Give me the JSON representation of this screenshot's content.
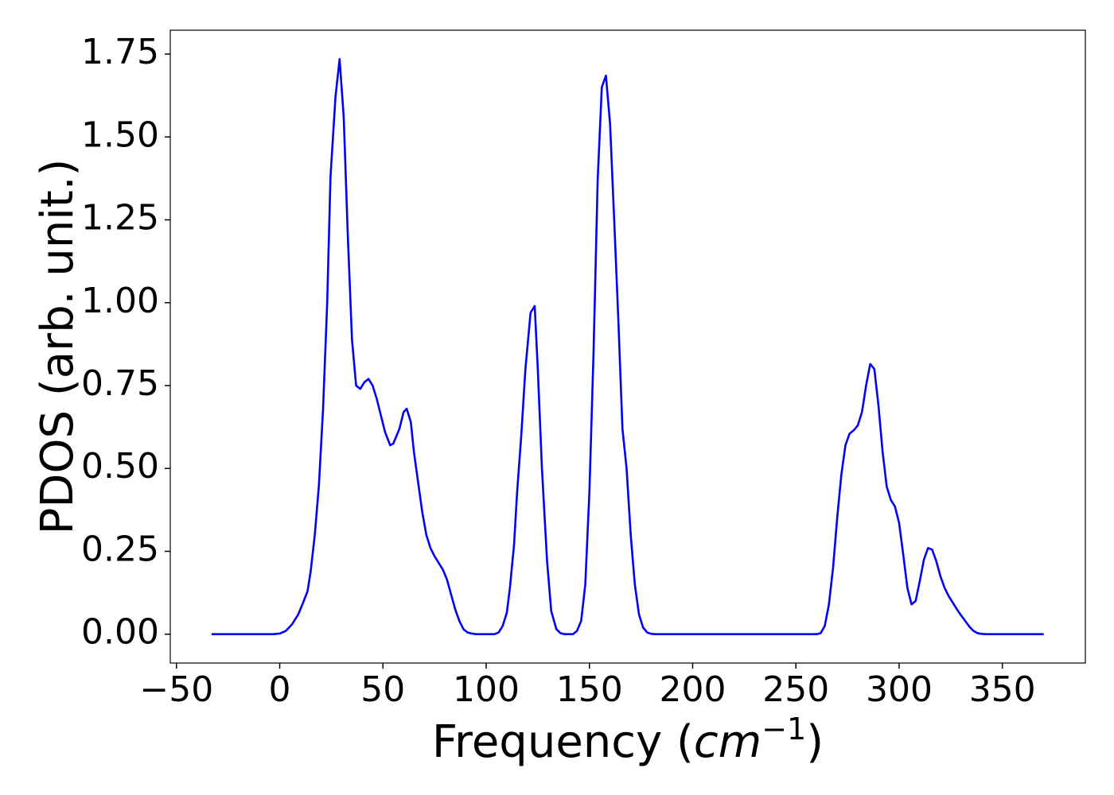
{
  "chart_data": {
    "type": "line",
    "xlabel": [
      "Frequency (",
      "cm",
      "−1",
      ")"
    ],
    "ylabel": "PDOS (arb. unit.)",
    "x": [
      -33,
      -3,
      0,
      3,
      6,
      9,
      11,
      13.5,
      15,
      17,
      19,
      21,
      23,
      24.6,
      27,
      29,
      31,
      33,
      35,
      37,
      39,
      41,
      43,
      45,
      47,
      49,
      51,
      53.5,
      55,
      58,
      60,
      61.5,
      63.5,
      65,
      67,
      69,
      71,
      73,
      75,
      77,
      79,
      81,
      83,
      85,
      87,
      89,
      91,
      93,
      95,
      104,
      106,
      108,
      110,
      111.5,
      113.5,
      115,
      117,
      119,
      121.5,
      123.5,
      125,
      127,
      129.5,
      131.5,
      134,
      136,
      138,
      142,
      144,
      146,
      148,
      150,
      152,
      154,
      156,
      158,
      160,
      162,
      164,
      166,
      168,
      170,
      172,
      174,
      176,
      178,
      180,
      182,
      260,
      262,
      264,
      266,
      268,
      270,
      272,
      274,
      276,
      278,
      280,
      282,
      284,
      286,
      288,
      290,
      292,
      294,
      296,
      298,
      300,
      302,
      304,
      306,
      308,
      310,
      312,
      314,
      316,
      318,
      320,
      322,
      324,
      326,
      328,
      330,
      332,
      334,
      336,
      338,
      340,
      342,
      370
    ],
    "series": [
      {
        "color": "#0000ff",
        "values": [
          0,
          0,
          0.002,
          0.01,
          0.03,
          0.06,
          0.09,
          0.13,
          0.19,
          0.3,
          0.45,
          0.68,
          1.0,
          1.38,
          1.62,
          1.735,
          1.56,
          1.2,
          0.89,
          0.75,
          0.74,
          0.76,
          0.77,
          0.75,
          0.71,
          0.66,
          0.61,
          0.57,
          0.575,
          0.62,
          0.67,
          0.68,
          0.64,
          0.55,
          0.46,
          0.37,
          0.3,
          0.26,
          0.235,
          0.215,
          0.195,
          0.165,
          0.12,
          0.075,
          0.04,
          0.015,
          0.005,
          0.002,
          0,
          0,
          0.005,
          0.025,
          0.065,
          0.14,
          0.27,
          0.43,
          0.6,
          0.8,
          0.97,
          0.99,
          0.8,
          0.5,
          0.22,
          0.07,
          0.015,
          0.003,
          0,
          0,
          0.01,
          0.04,
          0.15,
          0.43,
          0.85,
          1.37,
          1.65,
          1.685,
          1.54,
          1.25,
          0.95,
          0.62,
          0.5,
          0.3,
          0.15,
          0.06,
          0.02,
          0.005,
          0.001,
          0,
          0,
          0.003,
          0.025,
          0.09,
          0.2,
          0.35,
          0.48,
          0.57,
          0.605,
          0.615,
          0.63,
          0.67,
          0.75,
          0.815,
          0.8,
          0.69,
          0.55,
          0.445,
          0.405,
          0.385,
          0.335,
          0.24,
          0.14,
          0.09,
          0.1,
          0.16,
          0.225,
          0.26,
          0.255,
          0.22,
          0.175,
          0.14,
          0.115,
          0.095,
          0.075,
          0.057,
          0.04,
          0.023,
          0.01,
          0.003,
          0.001,
          0,
          0
        ]
      }
    ],
    "xlim": [
      -53,
      390.2
    ],
    "ylim": [
      -0.087,
      1.822
    ],
    "xticks": [
      {
        "value": -50,
        "label": "−50"
      },
      0,
      50,
      100,
      150,
      200,
      250,
      300,
      350
    ],
    "yticks": [
      {
        "value": 0,
        "label": "0.00"
      },
      {
        "value": 0.25,
        "label": "0.25"
      },
      {
        "value": 0.5,
        "label": "0.50"
      },
      {
        "value": 0.75,
        "label": "0.75"
      },
      {
        "value": 1,
        "label": "1.00"
      },
      {
        "value": 1.25,
        "label": "1.25"
      },
      {
        "value": 1.5,
        "label": "1.50"
      },
      {
        "value": 1.75,
        "label": "1.75"
      }
    ]
  }
}
